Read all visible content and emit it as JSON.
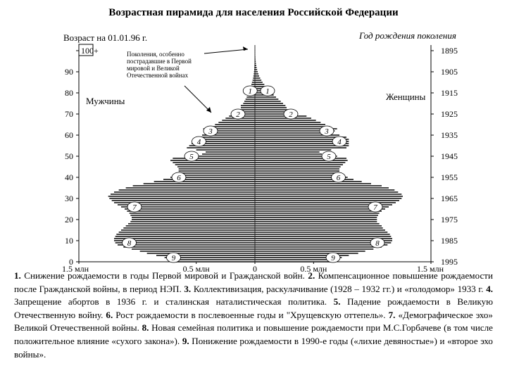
{
  "title": "Возрастная пирамида для населения Российской Федерации",
  "chart_data": {
    "type": "population_pyramid",
    "y_left_label": "Возраст на 01.01.96 г.",
    "y_right_label": "Год рождения поколения",
    "age_ticks": [
      "0",
      "10",
      "20",
      "30",
      "40",
      "50",
      "60",
      "70",
      "80",
      "90",
      "100+"
    ],
    "year_ticks": [
      "1995",
      "1985",
      "1975",
      "1965",
      "1955",
      "1945",
      "1935",
      "1925",
      "1915",
      "1905",
      "1895"
    ],
    "x_tick_labels": [
      "1,5 млн",
      "0,5 млн",
      "0",
      "0,5 млн",
      "1,5 млн"
    ],
    "x_range_millions": [
      -1.5,
      1.5
    ],
    "male_label": "Мужчины",
    "female_label": "Женщины",
    "callout": "Поколения, особенно пострадавшие в Первой мировой и Великой Отечественной войнах",
    "ages": [
      0,
      1,
      2,
      3,
      4,
      5,
      6,
      7,
      8,
      9,
      10,
      11,
      12,
      13,
      14,
      15,
      16,
      17,
      18,
      19,
      20,
      21,
      22,
      23,
      24,
      25,
      26,
      27,
      28,
      29,
      30,
      31,
      32,
      33,
      34,
      35,
      36,
      37,
      38,
      39,
      40,
      41,
      42,
      43,
      44,
      45,
      46,
      47,
      48,
      49,
      50,
      51,
      52,
      53,
      54,
      55,
      56,
      57,
      58,
      59,
      60,
      61,
      62,
      63,
      64,
      65,
      66,
      67,
      68,
      69,
      70,
      71,
      72,
      73,
      74,
      75,
      76,
      77,
      78,
      79,
      80,
      81,
      82,
      83,
      84,
      85,
      86,
      87,
      88,
      89,
      90,
      91,
      92,
      93,
      94,
      95,
      96,
      97,
      98,
      99,
      100
    ],
    "males_millions": [
      0.71,
      0.72,
      0.77,
      0.84,
      0.92,
      0.98,
      1.05,
      1.12,
      1.17,
      1.19,
      1.2,
      1.2,
      1.19,
      1.18,
      1.16,
      1.14,
      1.12,
      1.1,
      1.08,
      1.06,
      1.05,
      1.05,
      1.06,
      1.07,
      1.09,
      1.11,
      1.14,
      1.17,
      1.2,
      1.22,
      1.24,
      1.25,
      1.23,
      1.2,
      1.16,
      1.1,
      1.04,
      0.95,
      0.86,
      0.78,
      0.72,
      0.68,
      0.66,
      0.65,
      0.65,
      0.66,
      0.68,
      0.7,
      0.72,
      0.7,
      0.6,
      0.45,
      0.42,
      0.5,
      0.58,
      0.56,
      0.54,
      0.53,
      0.52,
      0.5,
      0.45,
      0.4,
      0.42,
      0.44,
      0.38,
      0.34,
      0.31,
      0.28,
      0.25,
      0.22,
      0.16,
      0.14,
      0.13,
      0.12,
      0.12,
      0.1,
      0.09,
      0.08,
      0.07,
      0.06,
      0.05,
      0.045,
      0.04,
      0.035,
      0.03,
      0.025,
      0.02,
      0.016,
      0.013,
      0.01,
      0.008,
      0.006,
      0.005,
      0.004,
      0.003,
      0.0025,
      0.002,
      0.0015,
      0.001,
      0.001,
      0.001
    ],
    "females_millions": [
      0.68,
      0.69,
      0.74,
      0.8,
      0.88,
      0.94,
      1.01,
      1.08,
      1.13,
      1.16,
      1.17,
      1.17,
      1.16,
      1.15,
      1.13,
      1.11,
      1.09,
      1.08,
      1.06,
      1.04,
      1.04,
      1.04,
      1.05,
      1.06,
      1.08,
      1.11,
      1.14,
      1.17,
      1.2,
      1.23,
      1.25,
      1.26,
      1.25,
      1.22,
      1.19,
      1.14,
      1.08,
      0.99,
      0.91,
      0.84,
      0.79,
      0.75,
      0.73,
      0.72,
      0.72,
      0.73,
      0.75,
      0.77,
      0.79,
      0.78,
      0.7,
      0.57,
      0.55,
      0.65,
      0.78,
      0.8,
      0.8,
      0.8,
      0.8,
      0.78,
      0.72,
      0.66,
      0.68,
      0.7,
      0.64,
      0.6,
      0.56,
      0.52,
      0.48,
      0.44,
      0.34,
      0.3,
      0.28,
      0.27,
      0.26,
      0.24,
      0.22,
      0.2,
      0.18,
      0.16,
      0.14,
      0.12,
      0.105,
      0.09,
      0.08,
      0.065,
      0.055,
      0.045,
      0.036,
      0.03,
      0.024,
      0.019,
      0.015,
      0.012,
      0.009,
      0.007,
      0.005,
      0.004,
      0.003,
      0.002,
      0.002
    ],
    "markers": [
      {
        "label": "1",
        "age": 81
      },
      {
        "label": "2",
        "age": 70
      },
      {
        "label": "3",
        "age": 62
      },
      {
        "label": "4",
        "age": 57
      },
      {
        "label": "5",
        "age": 50
      },
      {
        "label": "6",
        "age": 40
      },
      {
        "label": "7",
        "age": 26
      },
      {
        "label": "8",
        "age": 9
      },
      {
        "label": "9",
        "age": 2
      }
    ]
  },
  "notes": [
    {
      "num": "1.",
      "text": " Снижение рождаемости в годы Первой мировой и Гражданской войн. "
    },
    {
      "num": "2.",
      "text": " Компенсационное повышение рождаемости после Гражданской войны, в период НЭП. "
    },
    {
      "num": "3.",
      "text": " Коллективизация, раскулачивание (1928 – 1932 гг.) и «голодомор» 1933 г. "
    },
    {
      "num": "4.",
      "text": " Запрещение абортов в 1936 г. и сталинская наталистическая политика. "
    },
    {
      "num": "5.",
      "text": " Падение рождаемости в Великую Отечественную войну. "
    },
    {
      "num": "6.",
      "text": " Рост рождаемости в послевоенные годы и \"Хрущевскую оттепель». "
    },
    {
      "num": "7.",
      "text": " «Демографическое эхо» Великой Отечественной войны. "
    },
    {
      "num": "8.",
      "text": " Новая семейная политика и повышение рождаемости при М.С.Горбачеве (в том числе положительное влияние «сухого закона»). "
    },
    {
      "num": "9.",
      "text": " Понижение рождаемости в 1990-е годы («лихие девяностые») и «второе эхо войны»."
    }
  ]
}
